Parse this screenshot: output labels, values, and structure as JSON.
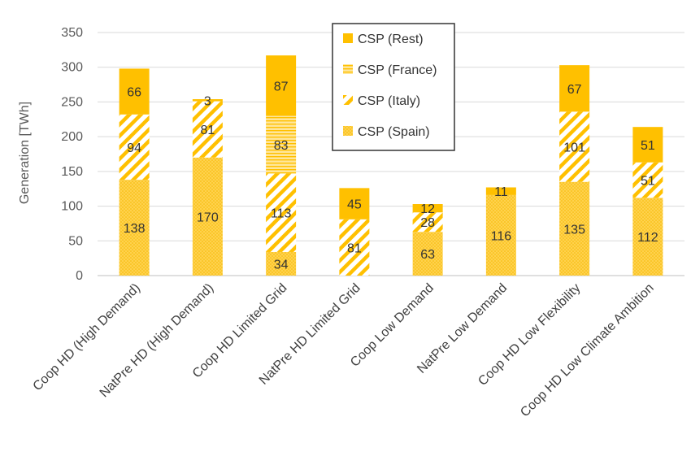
{
  "chart_data": {
    "type": "bar",
    "stacked": true,
    "title": "",
    "xlabel": "",
    "ylabel": "Generation [TWh]",
    "ylim": [
      0,
      350
    ],
    "yticks": [
      0,
      50,
      100,
      150,
      200,
      250,
      300,
      350
    ],
    "grid": true,
    "legend_position": "top-center",
    "categories": [
      "Coop HD (High Demand)",
      "NatPre HD (High Demand)",
      "Coop HD Limited Grid",
      "NatPre HD Limited Grid",
      "Coop Low Demand",
      "NatPre Low Demand",
      "Coop HD Low Flexibility",
      "Coop HD Low Climate Ambition"
    ],
    "series": [
      {
        "name": "CSP (Spain)",
        "pattern": "dots",
        "values": [
          138,
          170,
          34,
          0,
          63,
          116,
          135,
          112
        ]
      },
      {
        "name": "CSP (Italy)",
        "pattern": "diagonal",
        "values": [
          94,
          81,
          113,
          81,
          28,
          0,
          101,
          51
        ]
      },
      {
        "name": "CSP (France)",
        "pattern": "horizontal",
        "values": [
          0,
          0,
          83,
          0,
          0,
          0,
          0,
          0
        ]
      },
      {
        "name": "CSP (Rest)",
        "pattern": "solid",
        "values": [
          66,
          3,
          87,
          45,
          12,
          11,
          67,
          51
        ]
      }
    ],
    "legend_order": [
      "CSP (Rest)",
      "CSP (France)",
      "CSP (Italy)",
      "CSP (Spain)"
    ],
    "colors": {
      "solid": "#ffc000",
      "pattern_fg": "#ffc000",
      "pattern_bg": "#fff2cc"
    }
  }
}
